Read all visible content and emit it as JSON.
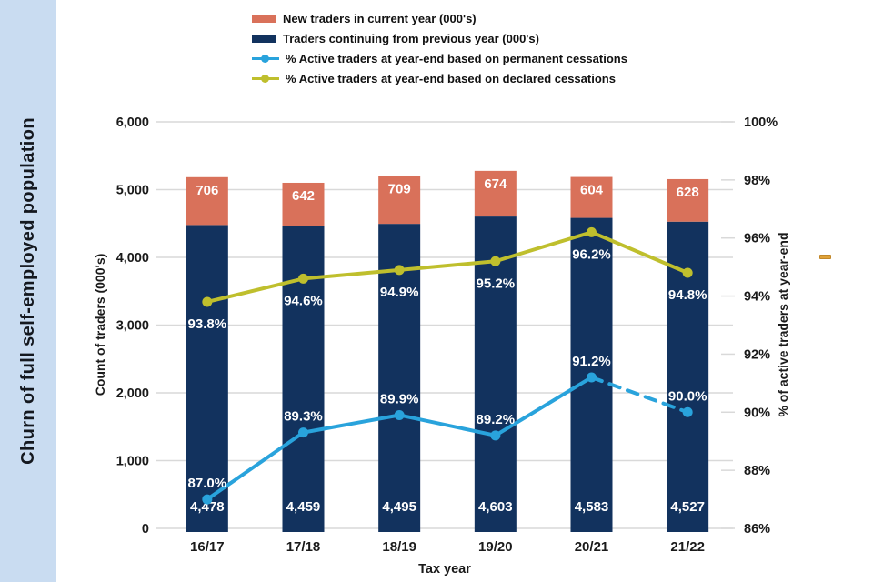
{
  "sidebar": {
    "title": "Churn of full self-employed population",
    "bg": "#c9dcf1",
    "text_color": "#14181f"
  },
  "legend": {
    "items": [
      {
        "type": "rect",
        "color": "#d9715a",
        "label": "New traders in current year (000's)"
      },
      {
        "type": "rect",
        "color": "#12325e",
        "label": "Traders continuing from previous year (000's)"
      },
      {
        "type": "line",
        "color": "#29a3dc",
        "label": "% Active traders at year-end based on permanent cessations"
      },
      {
        "type": "line",
        "color": "#bfbf2d",
        "label": "% Active traders at year-end based on declared cessations"
      }
    ]
  },
  "chart_data": {
    "type": "bar",
    "subtype": "stacked-bars-with-lines-combo",
    "categories": [
      "16/17",
      "17/18",
      "18/19",
      "19/20",
      "20/21",
      "21/22"
    ],
    "bar_series": [
      {
        "name": "Traders continuing from previous year (000's)",
        "color": "#12325e",
        "values": [
          4478,
          4459,
          4495,
          4603,
          4583,
          4527
        ],
        "labels": [
          "4,478",
          "4,459",
          "4,495",
          "4,603",
          "4,583",
          "4,527"
        ],
        "label_color": "#ffffff"
      },
      {
        "name": "New traders in current year (000's)",
        "color": "#d9715a",
        "values": [
          706,
          642,
          709,
          674,
          604,
          628
        ],
        "labels": [
          "706",
          "642",
          "709",
          "674",
          "604",
          "628"
        ],
        "label_color": "#ffffff"
      }
    ],
    "line_series": [
      {
        "name": "% Active traders at year-end based on permanent cessations",
        "color": "#29a3dc",
        "axis": "right",
        "values": [
          87.0,
          89.3,
          89.9,
          89.2,
          91.2,
          90.0
        ],
        "labels": [
          "87.0%",
          "89.3%",
          "89.9%",
          "89.2%",
          "91.2%",
          "90.0%"
        ],
        "label_side": "above",
        "label_color": "#ffffff",
        "dashed_last_segment": true
      },
      {
        "name": "% Active traders at year-end based on declared cessations",
        "color": "#bfbf2d",
        "axis": "right",
        "values": [
          93.8,
          94.6,
          94.9,
          95.2,
          96.2,
          94.8
        ],
        "labels": [
          "93.8%",
          "94.6%",
          "94.9%",
          "95.2%",
          "96.2%",
          "94.8%"
        ],
        "label_side": "below",
        "label_color": "#ffffff",
        "dashed_last_segment": false
      }
    ],
    "xlabel": "Tax year",
    "y_left": {
      "label": "Count of traders (000's)",
      "min": 0,
      "max": 6000,
      "step": 1000,
      "tick_labels": [
        "0",
        "1,000",
        "2,000",
        "3,000",
        "4,000",
        "5,000",
        "6,000"
      ]
    },
    "y_right": {
      "label": "% of active traders at year-end",
      "min": 86,
      "max": 100,
      "step": 2,
      "tick_labels": [
        "86%",
        "88%",
        "90%",
        "92%",
        "94%",
        "96%",
        "98%",
        "100%"
      ]
    },
    "grid": true,
    "grid_color": "#d9d9d9",
    "legend_position": "top",
    "tick_text_color": "#1a1a1a"
  },
  "annotations": {
    "orange_dash_color": "#e0a339",
    "orange_dash_border": "#c2882a"
  }
}
